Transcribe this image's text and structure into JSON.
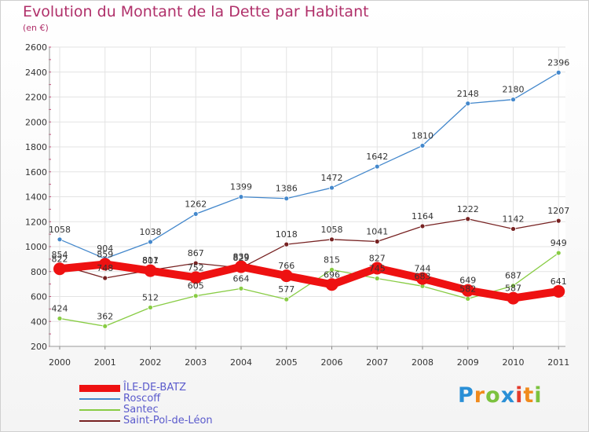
{
  "header": {
    "title": "Evolution du Montant de la Dette par Habitant",
    "subtitle": "(en €)"
  },
  "chart_data": {
    "type": "line",
    "title": "Evolution du Montant de la Dette par Habitant",
    "subtitle": "(en €)",
    "xlabel": "",
    "ylabel": "",
    "categories": [
      "2000",
      "2001",
      "2002",
      "2003",
      "2004",
      "2005",
      "2006",
      "2007",
      "2008",
      "2009",
      "2010",
      "2011"
    ],
    "ylim": [
      200,
      2600
    ],
    "yticks": [
      200,
      400,
      600,
      800,
      1000,
      1200,
      1400,
      1600,
      1800,
      2000,
      2200,
      2400,
      2600
    ],
    "grid": true,
    "legend_position": "bottom-left",
    "series": [
      {
        "name": "ÎLE-DE-BATZ",
        "color": "#ee1111",
        "emphasis": true,
        "values": [
          822,
          859,
          807,
          752,
          839,
          766,
          696,
          827,
          744,
          649,
          587,
          641
        ]
      },
      {
        "name": "Roscoff",
        "color": "#4488cc",
        "values": [
          1058,
          904,
          1038,
          1262,
          1399,
          1386,
          1472,
          1642,
          1810,
          2148,
          2180,
          2396
        ]
      },
      {
        "name": "Santec",
        "color": "#88cc44",
        "values": [
          424,
          362,
          512,
          605,
          664,
          577,
          815,
          745,
          683,
          582,
          687,
          949
        ]
      },
      {
        "name": "Saint-Pol-de-Léon",
        "color": "#772222",
        "values": [
          854,
          748,
          811,
          867,
          829,
          1018,
          1058,
          1041,
          1164,
          1222,
          1142,
          1207
        ]
      }
    ]
  },
  "logo": {
    "letters": [
      "P",
      "r",
      "o",
      "x",
      "i",
      "t",
      "i"
    ],
    "colors": [
      "#2a8fd6",
      "#f08a1c",
      "#7cc23f",
      "#2a8fd6",
      "#e43b2d",
      "#f08a1c",
      "#7cc23f"
    ]
  }
}
